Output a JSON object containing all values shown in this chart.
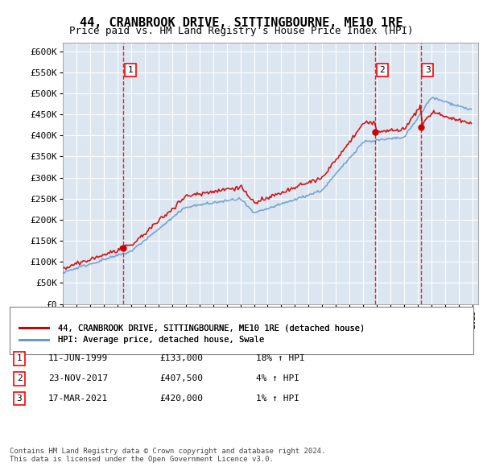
{
  "title": "44, CRANBROOK DRIVE, SITTINGBOURNE, ME10 1RE",
  "subtitle": "Price paid vs. HM Land Registry's House Price Index (HPI)",
  "xlabel": "",
  "ylabel": "",
  "ylim": [
    0,
    620000
  ],
  "yticks": [
    0,
    50000,
    100000,
    150000,
    200000,
    250000,
    300000,
    350000,
    400000,
    450000,
    500000,
    550000,
    600000
  ],
  "ytick_labels": [
    "£0",
    "£50K",
    "£100K",
    "£150K",
    "£200K",
    "£250K",
    "£300K",
    "£350K",
    "£400K",
    "£450K",
    "£500K",
    "£550K",
    "£600K"
  ],
  "price_paid_color": "#cc0000",
  "hpi_color": "#6699cc",
  "background_color": "#dce6f1",
  "purchase_dates": [
    "1999-06-11",
    "2017-11-23",
    "2021-03-17"
  ],
  "purchase_prices": [
    133000,
    407500,
    420000
  ],
  "purchase_labels": [
    "1",
    "2",
    "3"
  ],
  "purchase_hpi_pct": [
    "18%",
    "4%",
    "1%"
  ],
  "legend_label_red": "44, CRANBROOK DRIVE, SITTINGBOURNE, ME10 1RE (detached house)",
  "legend_label_blue": "HPI: Average price, detached house, Swale",
  "table_rows": [
    [
      "1",
      "11-JUN-1999",
      "£133,000",
      "18% ↑ HPI"
    ],
    [
      "2",
      "23-NOV-2017",
      "£407,500",
      "4% ↑ HPI"
    ],
    [
      "3",
      "17-MAR-2021",
      "£420,000",
      "1% ↑ HPI"
    ]
  ],
  "footnote": "Contains HM Land Registry data © Crown copyright and database right 2024.\nThis data is licensed under the Open Government Licence v3.0.",
  "x_start_year": 1995,
  "x_end_year": 2025
}
